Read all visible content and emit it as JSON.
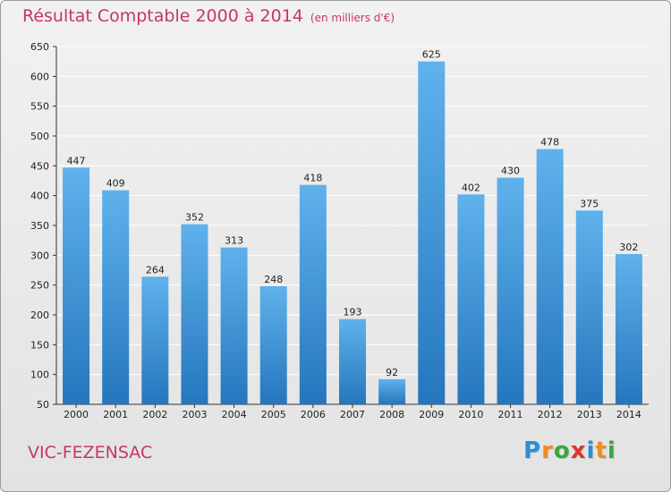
{
  "chart_data": {
    "type": "bar",
    "title": "Résultat Comptable 2000 à 2014",
    "unit_note": "(en milliers d'€)",
    "categories": [
      "2000",
      "2001",
      "2002",
      "2003",
      "2004",
      "2005",
      "2006",
      "2007",
      "2008",
      "2009",
      "2010",
      "2011",
      "2012",
      "2013",
      "2014"
    ],
    "values": [
      447,
      409,
      264,
      352,
      313,
      248,
      418,
      193,
      92,
      625,
      402,
      430,
      478,
      375,
      302
    ],
    "ylim": [
      50,
      650
    ],
    "yticks": [
      50,
      100,
      150,
      200,
      250,
      300,
      350,
      400,
      450,
      500,
      550,
      600,
      650
    ],
    "grid": true,
    "bar_color": "#3d97da",
    "xlabel": "",
    "ylabel": ""
  },
  "footer": {
    "city": "VIC-FEZENSAC",
    "logo_letters": [
      "P",
      "r",
      "o",
      "x",
      "i",
      "t",
      "i"
    ],
    "logo_colors": [
      "#2a8fd6",
      "#f08c1c",
      "#3aa63a",
      "#e0342c",
      "#2a8fd6",
      "#f08c1c",
      "#3aa63a"
    ]
  },
  "colors": {
    "accent": "#c4366b",
    "grid": "#ffffff",
    "axis": "#333333"
  }
}
